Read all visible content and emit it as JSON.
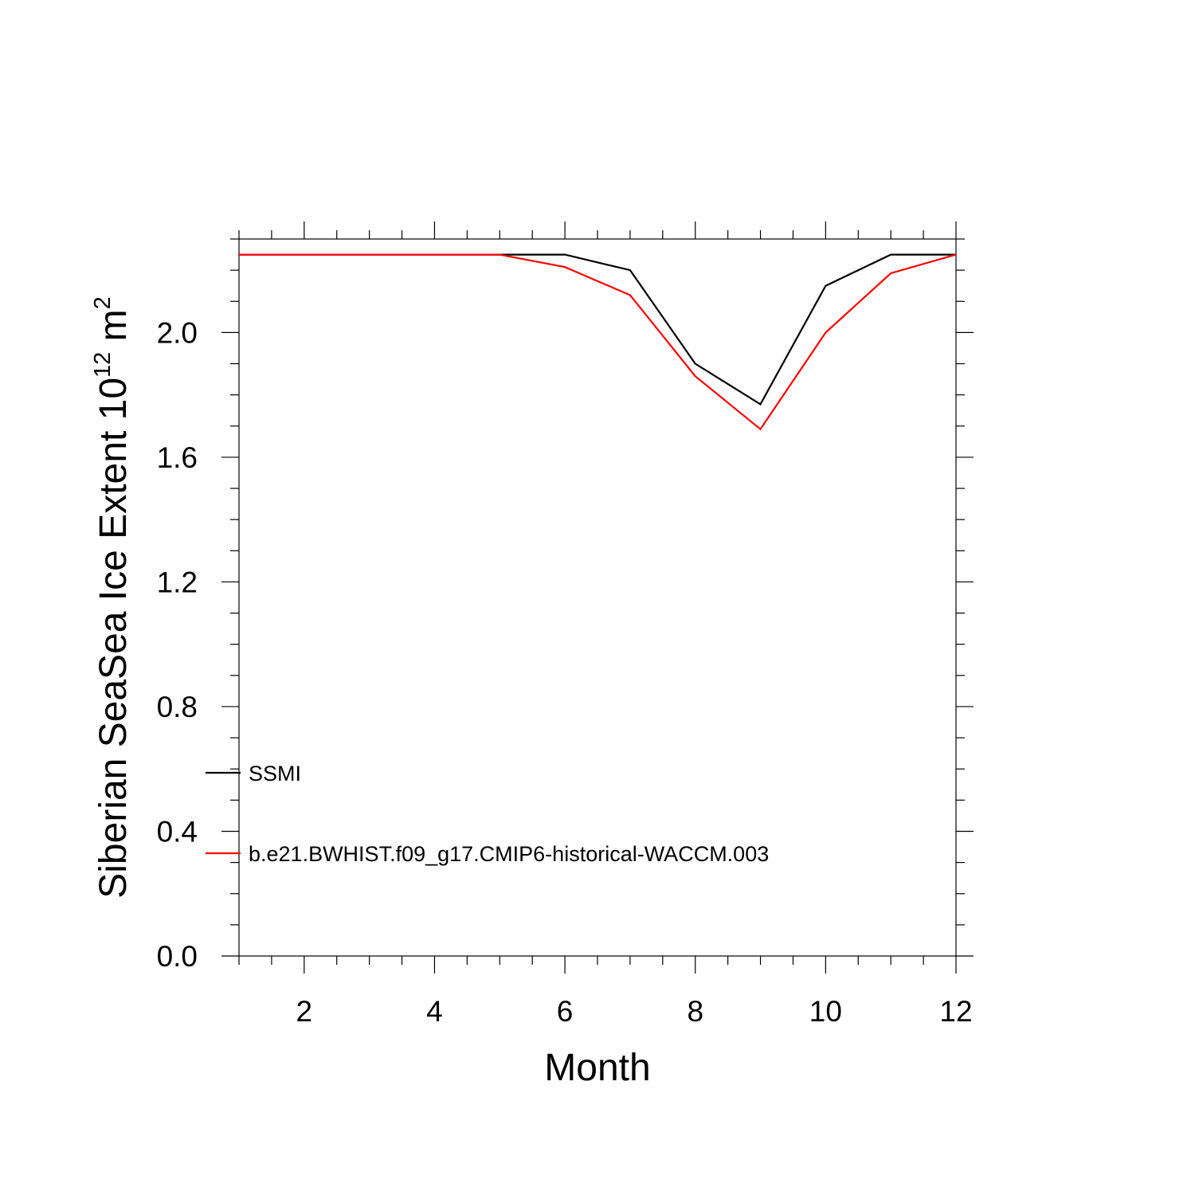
{
  "chart_data": {
    "type": "line",
    "title": "",
    "xlabel": "Month",
    "ylabel": {
      "main": "Siberian SeaSea Ice Extent 10",
      "superscript": "12",
      "unit": " m",
      "unit_superscript": "2"
    },
    "xlim": [
      1,
      12
    ],
    "ylim": [
      0.0,
      2.3
    ],
    "x_ticks": [
      2,
      4,
      6,
      8,
      10,
      12
    ],
    "x_tick_labels": [
      "2",
      "4",
      "6",
      "8",
      "10",
      "12"
    ],
    "y_ticks": [
      0.0,
      0.4,
      0.8,
      1.2,
      1.6,
      2.0
    ],
    "y_tick_labels": [
      "0.0",
      "0.4",
      "0.8",
      "1.2",
      "1.6",
      "2.0"
    ],
    "grid": false,
    "legend_position": "lower-left",
    "x": [
      1,
      2,
      3,
      4,
      5,
      6,
      7,
      8,
      9,
      10,
      11,
      12
    ],
    "series": [
      {
        "name": "SSMI",
        "color": "#000000",
        "values": [
          2.25,
          2.25,
          2.25,
          2.25,
          2.25,
          2.25,
          2.2,
          1.9,
          1.77,
          2.15,
          2.25,
          2.25
        ]
      },
      {
        "name": "b.e21.BWHIST.f09_g17.CMIP6-historical-WACCM.003",
        "color": "#ff0000",
        "values": [
          2.25,
          2.25,
          2.25,
          2.25,
          2.25,
          2.21,
          2.12,
          1.86,
          1.69,
          2.0,
          2.19,
          2.25
        ]
      }
    ]
  }
}
